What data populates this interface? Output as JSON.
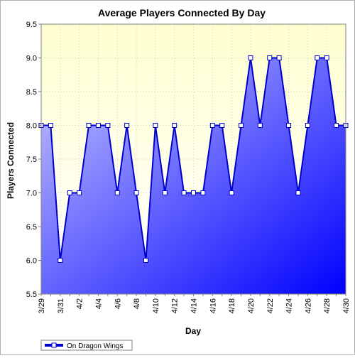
{
  "chart_data": {
    "type": "area",
    "title": "Average Players Connected By Day",
    "xlabel": "Day",
    "ylabel": "Players Connected",
    "ylim": [
      5.5,
      9.5
    ],
    "yticks": [
      "5.5",
      "6.0",
      "6.5",
      "7.0",
      "7.5",
      "8.0",
      "8.5",
      "9.0",
      "9.5"
    ],
    "categories": [
      "3/29",
      "3/30",
      "3/31",
      "4/1",
      "4/2",
      "4/3",
      "4/4",
      "4/5",
      "4/6",
      "4/7",
      "4/8",
      "4/9",
      "4/10",
      "4/11",
      "4/12",
      "4/13",
      "4/14",
      "4/15",
      "4/16",
      "4/17",
      "4/18",
      "4/19",
      "4/20",
      "4/21",
      "4/22",
      "4/23",
      "4/24",
      "4/25",
      "4/26",
      "4/27",
      "4/28",
      "4/29",
      "4/30"
    ],
    "tick_labels": [
      "3/29",
      "3/31",
      "4/2",
      "4/4",
      "4/6",
      "4/8",
      "4/10",
      "4/12",
      "4/14",
      "4/16",
      "4/18",
      "4/20",
      "4/22",
      "4/24",
      "4/26",
      "4/28",
      "4/30"
    ],
    "series": [
      {
        "name": "On Dragon Wings",
        "values": [
          8,
          8,
          6,
          7,
          7,
          8,
          8,
          8,
          7,
          8,
          7,
          6,
          8,
          7,
          8,
          7,
          7,
          7,
          8,
          8,
          7,
          8,
          9,
          8,
          9,
          9,
          8,
          7,
          8,
          9,
          9,
          8,
          8
        ]
      }
    ],
    "grid": true,
    "legend": "bottom-left",
    "colors": {
      "line": "#0000cc",
      "fill_light": "#c8c8ff",
      "fill_dark": "#0000ff",
      "plot_bg_top": "#ffffd0",
      "plot_bg_bottom": "#ffffff",
      "marker_fill": "#ffffff"
    }
  }
}
